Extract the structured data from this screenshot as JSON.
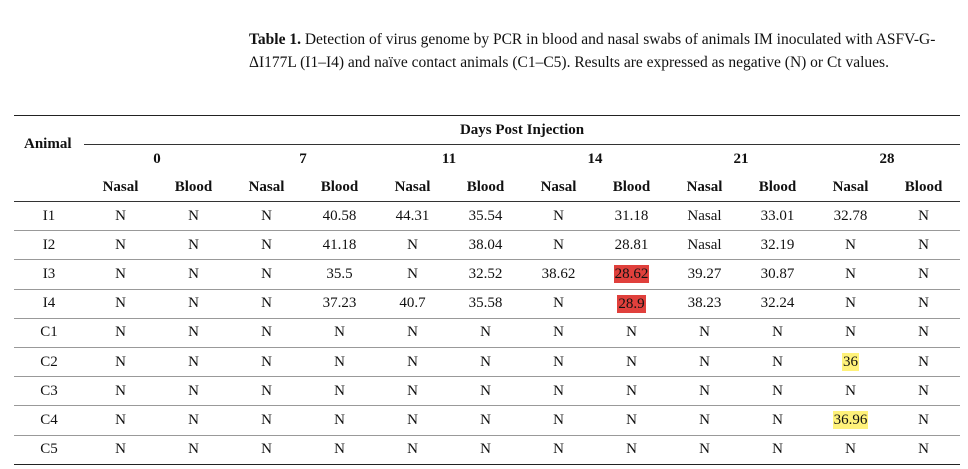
{
  "caption": {
    "label": "Table 1.",
    "text": "Detection of virus genome by PCR in blood and nasal swabs of animals IM inoculated with ASFV-G-ΔI177L (I1–I4) and naïve contact animals (C1–C5). Results are expressed as negative (N) or Ct values."
  },
  "table": {
    "animal_header": "Animal",
    "group_header": "Days Post Injection",
    "days": [
      "0",
      "7",
      "11",
      "14",
      "21",
      "28"
    ],
    "subheaders": [
      "Nasal",
      "Blood",
      "Nasal",
      "Blood",
      "Nasal",
      "Blood",
      "Nasal",
      "Blood",
      "Nasal",
      "Blood",
      "Nasal",
      "Blood"
    ],
    "highlight_colors": {
      "red": "#e0403c",
      "yellow": "#fff27a"
    },
    "rows": [
      {
        "animal": "I1",
        "cells": [
          "N",
          "N",
          "N",
          "40.58",
          "44.31",
          "35.54",
          "N",
          "31.18",
          "Nasal",
          "33.01",
          "32.78",
          "N"
        ]
      },
      {
        "animal": "I2",
        "cells": [
          "N",
          "N",
          "N",
          "41.18",
          "N",
          "38.04",
          "N",
          "28.81",
          "Nasal",
          "32.19",
          "N",
          "N"
        ]
      },
      {
        "animal": "I3",
        "cells": [
          "N",
          "N",
          "N",
          "35.5",
          "N",
          "32.52",
          "38.62",
          "28.62",
          "39.27",
          "30.87",
          "N",
          "N"
        ]
      },
      {
        "animal": "I4",
        "cells": [
          "N",
          "N",
          "N",
          "37.23",
          "40.7",
          "35.58",
          "N",
          "28.9",
          "38.23",
          "32.24",
          "N",
          "N"
        ]
      },
      {
        "animal": "C1",
        "cells": [
          "N",
          "N",
          "N",
          "N",
          "N",
          "N",
          "N",
          "N",
          "N",
          "N",
          "N",
          "N"
        ]
      },
      {
        "animal": "C2",
        "cells": [
          "N",
          "N",
          "N",
          "N",
          "N",
          "N",
          "N",
          "N",
          "N",
          "N",
          "36",
          "N"
        ]
      },
      {
        "animal": "C3",
        "cells": [
          "N",
          "N",
          "N",
          "N",
          "N",
          "N",
          "N",
          "N",
          "N",
          "N",
          "N",
          "N"
        ]
      },
      {
        "animal": "C4",
        "cells": [
          "N",
          "N",
          "N",
          "N",
          "N",
          "N",
          "N",
          "N",
          "N",
          "N",
          "36.96",
          "N"
        ]
      },
      {
        "animal": "C5",
        "cells": [
          "N",
          "N",
          "N",
          "N",
          "N",
          "N",
          "N",
          "N",
          "N",
          "N",
          "N",
          "N"
        ]
      }
    ]
  }
}
